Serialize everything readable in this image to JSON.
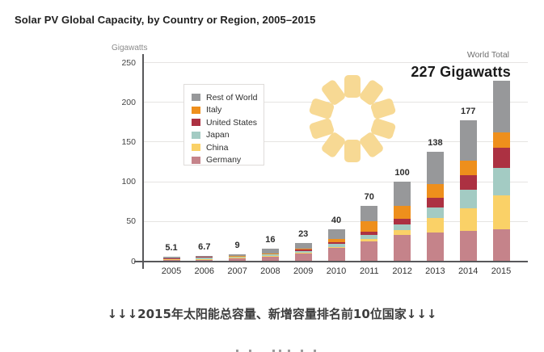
{
  "page": {
    "background": "#ffffff"
  },
  "caption": {
    "text": "↓↓↓2015年太阳能总容量、新增容量排名前10位国家↓↓↓"
  },
  "chart_data": {
    "type": "bar",
    "stacked": true,
    "title": "Solar PV Global Capacity, by Country or Region, 2005–2015",
    "xlabel": "",
    "ylabel": "Gigawatts",
    "ylim": [
      0,
      250
    ],
    "yticks": [
      0,
      50,
      100,
      150,
      200,
      250
    ],
    "grid": "horizontal-light",
    "legend_position": "upper-left-box",
    "categories": [
      "2005",
      "2006",
      "2007",
      "2008",
      "2009",
      "2010",
      "2011",
      "2012",
      "2013",
      "2014",
      "2015"
    ],
    "series": [
      {
        "name": "Germany",
        "color": "#c5838a",
        "values": [
          2.0,
          2.9,
          4.2,
          6.1,
          10.0,
          17.2,
          24.8,
          32.6,
          36.3,
          38.2,
          39.7
        ]
      },
      {
        "name": "China",
        "color": "#fad167",
        "values": [
          0.1,
          0.1,
          0.1,
          0.15,
          0.3,
          0.9,
          3.3,
          7.0,
          17.7,
          28.2,
          43.5
        ]
      },
      {
        "name": "Japan",
        "color": "#a3cbc3",
        "values": [
          1.4,
          1.7,
          1.9,
          2.1,
          2.6,
          3.6,
          4.9,
          6.6,
          13.6,
          23.3,
          34.4
        ]
      },
      {
        "name": "United States",
        "color": "#ac3142",
        "values": [
          0.5,
          0.6,
          0.8,
          1.2,
          1.6,
          2.5,
          4.0,
          7.3,
          12.1,
          18.3,
          25.6
        ]
      },
      {
        "name": "Italy",
        "color": "#ee8f1c",
        "values": [
          0.05,
          0.05,
          0.1,
          0.45,
          1.2,
          3.6,
          12.9,
          16.4,
          17.6,
          18.5,
          18.9
        ]
      },
      {
        "name": "Rest of World",
        "color": "#97989a",
        "values": [
          1.05,
          1.35,
          1.9,
          6.0,
          7.3,
          12.2,
          20.1,
          30.1,
          40.7,
          50.5,
          64.9
        ]
      }
    ],
    "stack_order_bottom_to_top": [
      "Germany",
      "China",
      "Japan",
      "United States",
      "Italy",
      "Rest of World"
    ],
    "legend_order_top_to_bottom": [
      "Rest of World",
      "Italy",
      "United States",
      "Japan",
      "China",
      "Germany"
    ],
    "bar_total_labels": [
      "5.1",
      "6.7",
      "9",
      "16",
      "23",
      "40",
      "70",
      "100",
      "138",
      "177",
      ""
    ],
    "annotation": {
      "label": "World Total",
      "value": "227 Gigawatts"
    }
  },
  "decor": {
    "sun_icon_color": "#f7d994",
    "sun_ray_count": 10,
    "clipped_next_line_marks_x": [
      292,
      308,
      337,
      345,
      356,
      372,
      388
    ]
  }
}
